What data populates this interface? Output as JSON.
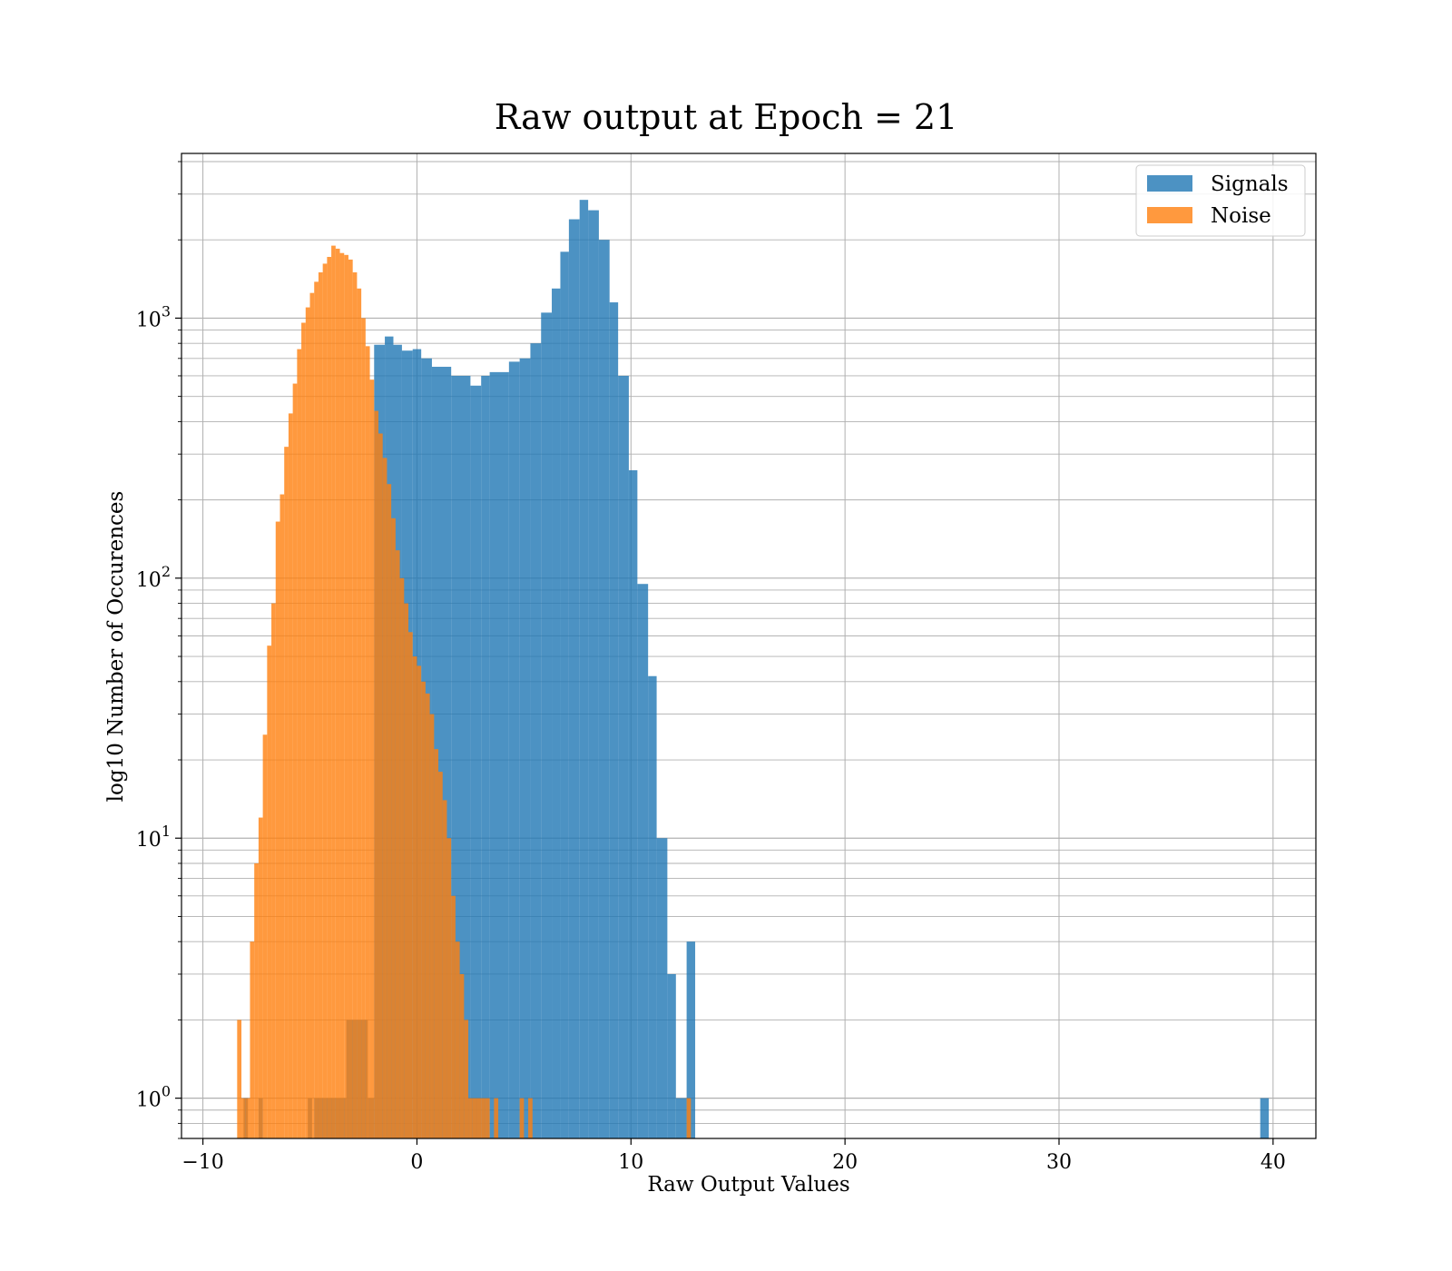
{
  "chart_data": {
    "type": "bar",
    "title": "Raw output at Epoch = 21",
    "xlabel": "Raw Output Values",
    "ylabel": "log10 Number of Occurences",
    "xlim": [
      -11,
      42
    ],
    "ylim": [
      0.7,
      4300
    ],
    "yscale": "log",
    "grid": true,
    "legend_position": "top-right",
    "x_ticks": [
      -10,
      0,
      10,
      20,
      30,
      40
    ],
    "x_tick_labels": [
      "−10",
      "0",
      "10",
      "20",
      "30",
      "40"
    ],
    "y_ticks": [
      {
        "value": 1,
        "base": "10",
        "exp": "0"
      },
      {
        "value": 10,
        "base": "10",
        "exp": "1"
      },
      {
        "value": 100,
        "base": "10",
        "exp": "2"
      },
      {
        "value": 1000,
        "base": "10",
        "exp": "3"
      }
    ],
    "series": [
      {
        "name": "Signals",
        "color": "#1f77b4",
        "alpha": 0.8,
        "bins": [
          [
            -8.1,
            -7.9,
            1
          ],
          [
            -7.4,
            -7.2,
            1
          ],
          [
            -5.1,
            -4.9,
            1
          ],
          [
            -4.8,
            -4.3,
            1
          ],
          [
            -4.3,
            -3.8,
            1
          ],
          [
            -3.8,
            -3.3,
            1
          ],
          [
            -3.3,
            -2.8,
            2
          ],
          [
            -2.8,
            -2.3,
            2
          ],
          [
            -2.3,
            -2.0,
            1
          ],
          [
            -2.0,
            -1.5,
            790
          ],
          [
            -1.5,
            -1.1,
            850
          ],
          [
            -1.1,
            -0.7,
            790
          ],
          [
            -0.7,
            -0.2,
            750
          ],
          [
            -0.2,
            0.2,
            760
          ],
          [
            0.2,
            0.7,
            700
          ],
          [
            0.7,
            1.6,
            650
          ],
          [
            1.6,
            2.5,
            600
          ],
          [
            2.5,
            3.0,
            550
          ],
          [
            3.0,
            3.4,
            600
          ],
          [
            3.4,
            4.3,
            620
          ],
          [
            4.3,
            4.8,
            680
          ],
          [
            4.8,
            5.3,
            700
          ],
          [
            5.3,
            5.8,
            800
          ],
          [
            5.8,
            6.3,
            1050
          ],
          [
            6.3,
            6.7,
            1300
          ],
          [
            6.7,
            7.1,
            1800
          ],
          [
            7.1,
            7.6,
            2400
          ],
          [
            7.6,
            8.0,
            2850
          ],
          [
            8.0,
            8.5,
            2600
          ],
          [
            8.5,
            9.0,
            2000
          ],
          [
            9.0,
            9.4,
            1150
          ],
          [
            9.4,
            9.9,
            600
          ],
          [
            9.9,
            10.3,
            260
          ],
          [
            10.3,
            10.8,
            95
          ],
          [
            10.8,
            11.2,
            42
          ],
          [
            11.2,
            11.7,
            10
          ],
          [
            11.7,
            12.1,
            3
          ],
          [
            12.1,
            12.6,
            1
          ],
          [
            12.6,
            13.0,
            4
          ],
          [
            39.4,
            39.8,
            1
          ]
        ]
      },
      {
        "name": "Noise",
        "color": "#ff7f0e",
        "alpha": 0.8,
        "bins": [
          [
            -8.4,
            -8.2,
            2
          ],
          [
            -8.2,
            -8.0,
            1
          ],
          [
            -8.0,
            -7.8,
            1
          ],
          [
            -7.8,
            -7.6,
            4
          ],
          [
            -7.6,
            -7.4,
            8
          ],
          [
            -7.4,
            -7.2,
            12
          ],
          [
            -7.2,
            -7.0,
            25
          ],
          [
            -7.0,
            -6.8,
            55
          ],
          [
            -6.8,
            -6.6,
            80
          ],
          [
            -6.6,
            -6.4,
            165
          ],
          [
            -6.4,
            -6.2,
            210
          ],
          [
            -6.2,
            -6.0,
            320
          ],
          [
            -6.0,
            -5.8,
            430
          ],
          [
            -5.8,
            -5.6,
            560
          ],
          [
            -5.6,
            -5.4,
            760
          ],
          [
            -5.4,
            -5.2,
            960
          ],
          [
            -5.2,
            -5.0,
            1100
          ],
          [
            -5.0,
            -4.8,
            1250
          ],
          [
            -4.8,
            -4.6,
            1380
          ],
          [
            -4.6,
            -4.4,
            1500
          ],
          [
            -4.4,
            -4.2,
            1620
          ],
          [
            -4.2,
            -4.0,
            1720
          ],
          [
            -4.0,
            -3.8,
            1900
          ],
          [
            -3.8,
            -3.6,
            1850
          ],
          [
            -3.6,
            -3.4,
            1780
          ],
          [
            -3.4,
            -3.2,
            1750
          ],
          [
            -3.2,
            -3.0,
            1680
          ],
          [
            -3.0,
            -2.8,
            1500
          ],
          [
            -2.8,
            -2.6,
            1300
          ],
          [
            -2.6,
            -2.4,
            1000
          ],
          [
            -2.4,
            -2.2,
            780
          ],
          [
            -2.2,
            -2.0,
            580
          ],
          [
            -2.0,
            -1.8,
            440
          ],
          [
            -1.8,
            -1.6,
            360
          ],
          [
            -1.6,
            -1.4,
            290
          ],
          [
            -1.4,
            -1.2,
            230
          ],
          [
            -1.2,
            -1.0,
            170
          ],
          [
            -1.0,
            -0.8,
            128
          ],
          [
            -0.8,
            -0.6,
            100
          ],
          [
            -0.6,
            -0.4,
            80
          ],
          [
            -0.4,
            -0.2,
            62
          ],
          [
            -0.2,
            0.0,
            50
          ],
          [
            0.0,
            0.2,
            46
          ],
          [
            0.2,
            0.4,
            40
          ],
          [
            0.4,
            0.6,
            36
          ],
          [
            0.6,
            0.8,
            30
          ],
          [
            0.8,
            1.0,
            22
          ],
          [
            1.0,
            1.2,
            18
          ],
          [
            1.2,
            1.4,
            14
          ],
          [
            1.4,
            1.6,
            10
          ],
          [
            1.6,
            1.8,
            6
          ],
          [
            1.8,
            2.0,
            4
          ],
          [
            2.0,
            2.2,
            3
          ],
          [
            2.2,
            2.4,
            2
          ],
          [
            2.4,
            2.6,
            1
          ],
          [
            2.6,
            2.8,
            1
          ],
          [
            2.8,
            3.0,
            1
          ],
          [
            3.0,
            3.2,
            1
          ],
          [
            3.2,
            3.4,
            1
          ],
          [
            3.6,
            3.8,
            1
          ],
          [
            4.8,
            5.0,
            1
          ],
          [
            5.2,
            5.4,
            1
          ],
          [
            12.6,
            12.8,
            1
          ]
        ]
      }
    ]
  }
}
